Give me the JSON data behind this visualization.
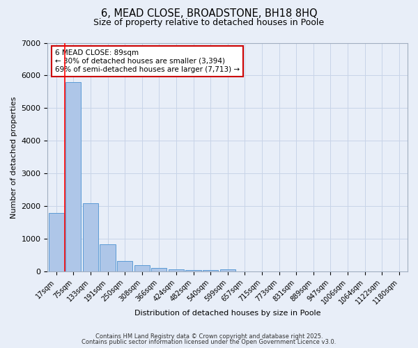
{
  "title1": "6, MEAD CLOSE, BROADSTONE, BH18 8HQ",
  "title2": "Size of property relative to detached houses in Poole",
  "xlabel": "Distribution of detached houses by size in Poole",
  "ylabel": "Number of detached properties",
  "categories": [
    "17sqm",
    "75sqm",
    "133sqm",
    "191sqm",
    "250sqm",
    "308sqm",
    "366sqm",
    "424sqm",
    "482sqm",
    "540sqm",
    "599sqm",
    "657sqm",
    "715sqm",
    "773sqm",
    "831sqm",
    "889sqm",
    "947sqm",
    "1006sqm",
    "1064sqm",
    "1122sqm",
    "1180sqm"
  ],
  "values": [
    1800,
    5800,
    2100,
    850,
    330,
    200,
    125,
    80,
    60,
    50,
    80,
    20,
    0,
    0,
    0,
    0,
    0,
    0,
    0,
    0,
    0
  ],
  "bar_color": "#aec6e8",
  "bar_edge_color": "#5b9bd5",
  "red_line_x": 0.5,
  "annotation_title": "6 MEAD CLOSE: 89sqm",
  "annotation_line1": "← 30% of detached houses are smaller (3,394)",
  "annotation_line2": "69% of semi-detached houses are larger (7,713) →",
  "annotation_box_color": "#ffffff",
  "annotation_box_edge": "#cc0000",
  "ylim": [
    0,
    7000
  ],
  "yticks": [
    0,
    1000,
    2000,
    3000,
    4000,
    5000,
    6000,
    7000
  ],
  "grid_color": "#c8d4e8",
  "background_color": "#e8eef8",
  "footnote1": "Contains HM Land Registry data © Crown copyright and database right 2025.",
  "footnote2": "Contains public sector information licensed under the Open Government Licence v3.0."
}
